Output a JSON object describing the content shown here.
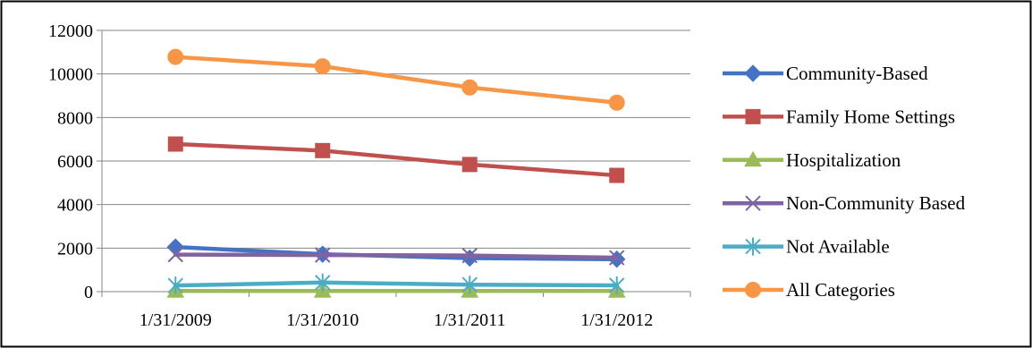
{
  "chart_data": {
    "type": "line",
    "categories": [
      "1/31/2009",
      "1/31/2010",
      "1/31/2011",
      "1/31/2012"
    ],
    "ylim": [
      0,
      12000
    ],
    "yticks": [
      0,
      2000,
      4000,
      6000,
      8000,
      10000,
      12000
    ],
    "grid": "horizontal",
    "legend_position": "right",
    "series": [
      {
        "name": "Community-Based",
        "color": "#4472C4",
        "marker": "diamond",
        "values": [
          2050,
          1720,
          1540,
          1490
        ]
      },
      {
        "name": "Family Home Settings",
        "color": "#C0504D",
        "marker": "square",
        "values": [
          6780,
          6480,
          5840,
          5340
        ]
      },
      {
        "name": "Hospitalization",
        "color": "#9BBB59",
        "marker": "triangle",
        "values": [
          30,
          30,
          30,
          30
        ]
      },
      {
        "name": "Non-Community Based",
        "color": "#8064A2",
        "marker": "x",
        "values": [
          1700,
          1680,
          1660,
          1560
        ]
      },
      {
        "name": "Not Available",
        "color": "#4BACC6",
        "marker": "star",
        "values": [
          280,
          420,
          320,
          290
        ]
      },
      {
        "name": "All Categories",
        "color": "#F79646",
        "marker": "circle",
        "values": [
          10780,
          10350,
          9380,
          8680
        ]
      }
    ]
  }
}
